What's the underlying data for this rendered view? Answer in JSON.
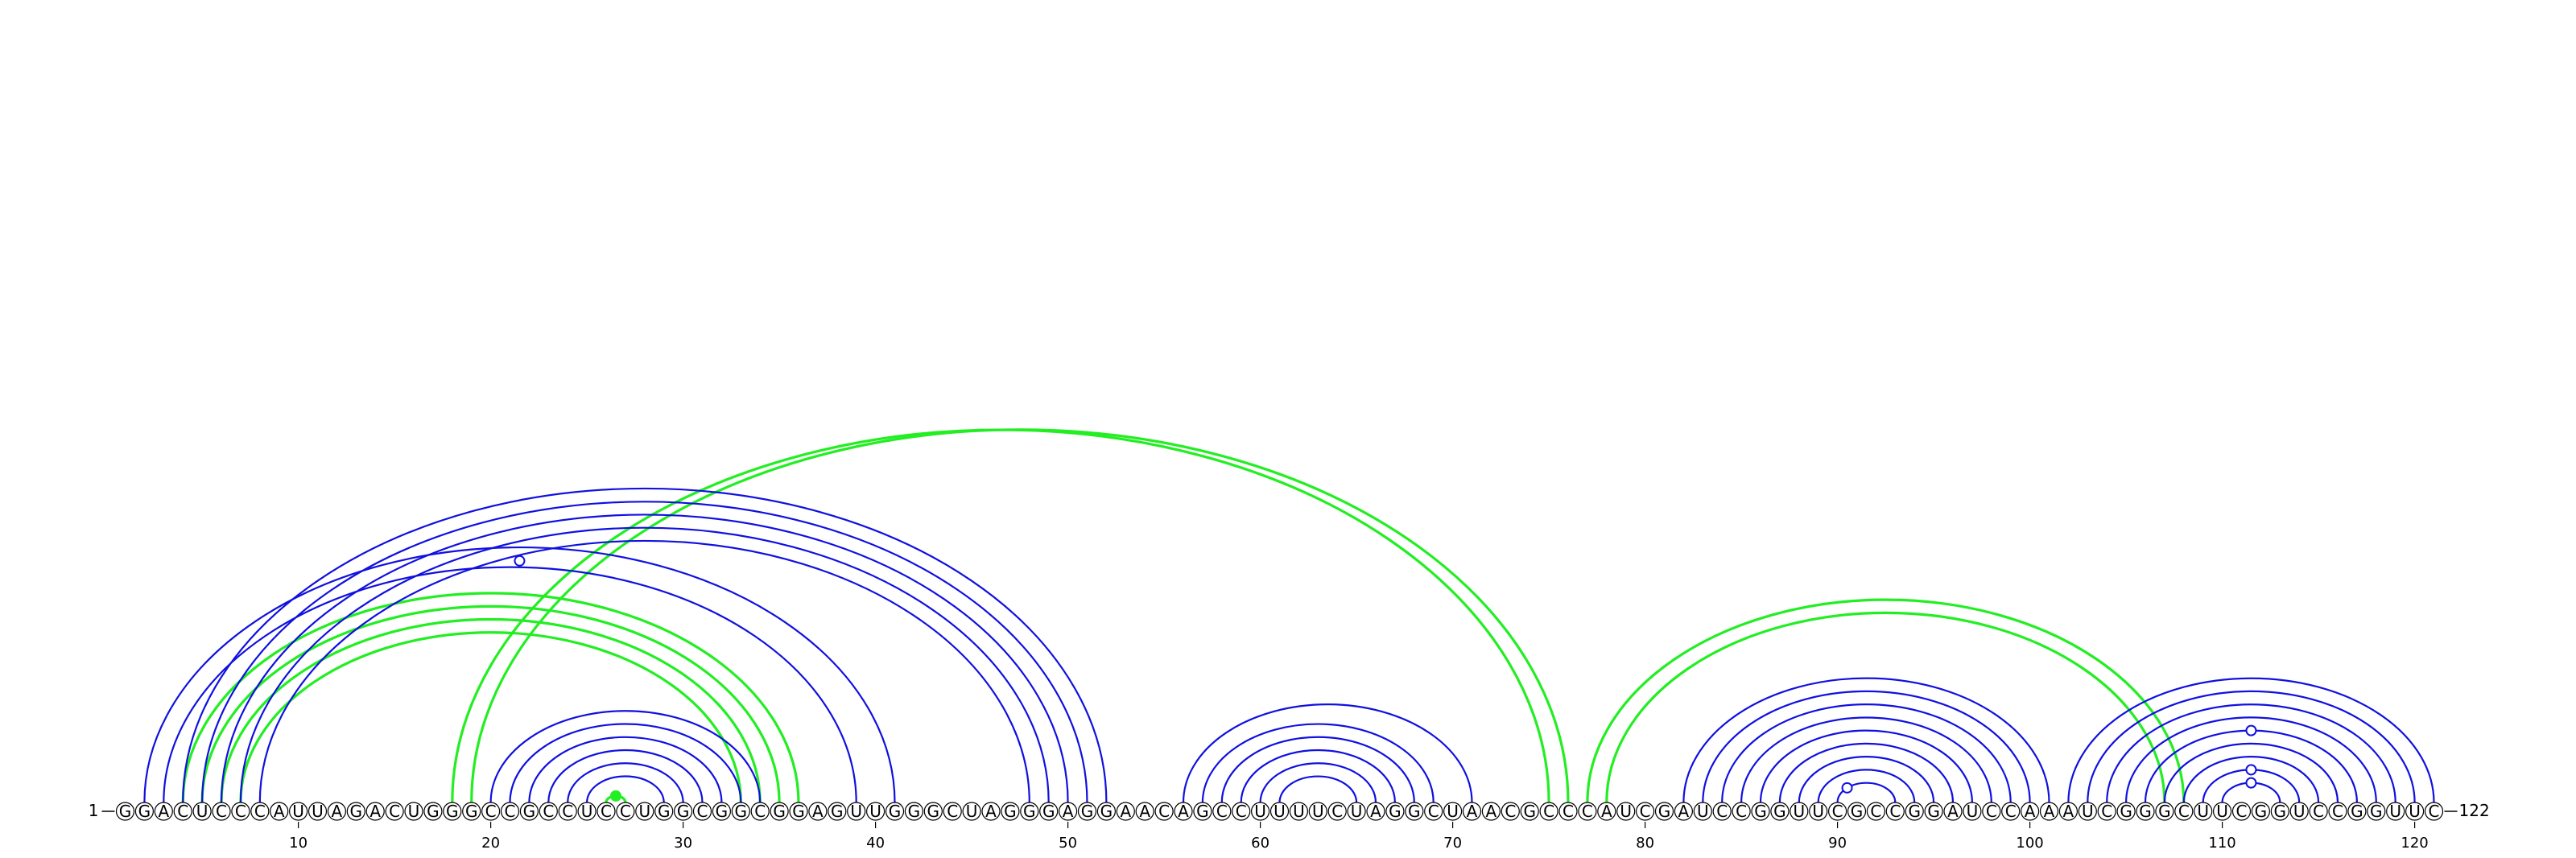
{
  "sequence": "GGACUCCCAUUAGACUGGGCCGCCUCCUGGCGGCGGAGUUGGGCUAGGGAGGAACAGCCUUUUCUAGGCUAACGCCCAUCGAUCCGGUUCGCCGGAUCCAAAUCGGGCUUCGGUCCGGUUC",
  "start_label": "1",
  "end_label": "122",
  "ticks": [
    10,
    20,
    30,
    40,
    50,
    60,
    70,
    80,
    90,
    100,
    110,
    120
  ],
  "colors": {
    "blue": "#1010e0",
    "green": "#22ee22"
  },
  "blue_pairs": [
    [
      2,
      41
    ],
    [
      3,
      39
    ],
    [
      4,
      52
    ],
    [
      5,
      51
    ],
    [
      6,
      50
    ],
    [
      7,
      49
    ],
    [
      8,
      48
    ],
    [
      20,
      34
    ],
    [
      21,
      33
    ],
    [
      22,
      32
    ],
    [
      23,
      31
    ],
    [
      24,
      30
    ],
    [
      25,
      29
    ],
    [
      56,
      71
    ],
    [
      57,
      69
    ],
    [
      58,
      68
    ],
    [
      59,
      67
    ],
    [
      60,
      66
    ],
    [
      61,
      65
    ],
    [
      82,
      101
    ],
    [
      83,
      100
    ],
    [
      84,
      99
    ],
    [
      85,
      98
    ],
    [
      86,
      97
    ],
    [
      87,
      96
    ],
    [
      88,
      95
    ],
    [
      89,
      94
    ],
    [
      90,
      93
    ],
    [
      102,
      121
    ],
    [
      103,
      120
    ],
    [
      104,
      119
    ],
    [
      105,
      118
    ],
    [
      106,
      117
    ],
    [
      107,
      116
    ],
    [
      108,
      115
    ],
    [
      109,
      114
    ],
    [
      110,
      113
    ]
  ],
  "green_pairs": [
    [
      4,
      36
    ],
    [
      5,
      35
    ],
    [
      6,
      34
    ],
    [
      7,
      33
    ],
    [
      18,
      75
    ],
    [
      19,
      76
    ],
    [
      77,
      108
    ],
    [
      78,
      107
    ],
    [
      26,
      27
    ]
  ],
  "markers": [
    {
      "x": 21.5,
      "y_pair": [
        4,
        41
      ],
      "style": "open",
      "color": "blue"
    },
    {
      "x": 26.5,
      "y_pair": [
        26,
        27
      ],
      "style": "filled",
      "color": "green"
    },
    {
      "x": 90.5,
      "y_pair": [
        90,
        93
      ],
      "style": "open",
      "color": "blue"
    },
    {
      "x": 111.5,
      "y_pair": [
        106,
        117
      ],
      "style": "open",
      "color": "blue"
    },
    {
      "x": 111.5,
      "y_pair": [
        109,
        114
      ],
      "style": "open",
      "color": "blue"
    },
    {
      "x": 111.5,
      "y_pair": [
        110,
        113
      ],
      "style": "open",
      "color": "blue"
    }
  ]
}
